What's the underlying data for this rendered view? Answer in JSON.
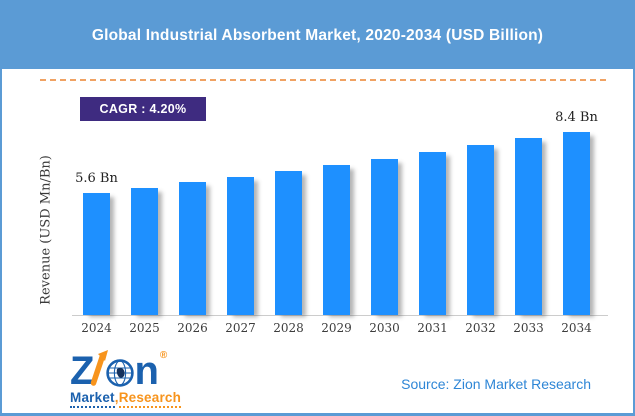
{
  "header": {
    "title": "Global Industrial Absorbent Market, 2020-2034 (USD Billion)"
  },
  "badge": {
    "label": "CAGR : 4.20%"
  },
  "chart_data": {
    "type": "bar",
    "title": "Global Industrial Absorbent Market, 2020-2034 (USD Billion)",
    "xlabel": "",
    "ylabel": "Revenue (USD Mn/Bn)",
    "categories": [
      "2024",
      "2025",
      "2026",
      "2027",
      "2028",
      "2029",
      "2030",
      "2031",
      "2032",
      "2033",
      "2034"
    ],
    "values": [
      5.6,
      5.84,
      6.08,
      6.34,
      6.6,
      6.88,
      7.17,
      7.47,
      7.78,
      8.11,
      8.4
    ],
    "value_labels": [
      "5.6 Bn",
      "",
      "",
      "",
      "",
      "",
      "",
      "",
      "",
      "",
      "8.4 Bn"
    ],
    "ylim": [
      0,
      9.6
    ],
    "grid": false,
    "legend": false,
    "bar_color": "#1E90FF",
    "cagr": "4.20%"
  },
  "footer": {
    "source": "Source: Zion Market Research",
    "logo": {
      "letter_z": "Z",
      "letter_n": "n",
      "reg_mark": "®",
      "market": "Market",
      "comma": ",",
      "research": "Research"
    }
  },
  "colors": {
    "header_blue": "#5b9bd5",
    "border_blue": "#5b9bd5",
    "bar_blue": "#1E90FF",
    "badge_purple": "#3e2b80",
    "dashed_orange": "#f0a263",
    "source_blue": "#2e86d6",
    "logo_blue": "#1b61ae",
    "logo_orange": "#f7941d"
  }
}
